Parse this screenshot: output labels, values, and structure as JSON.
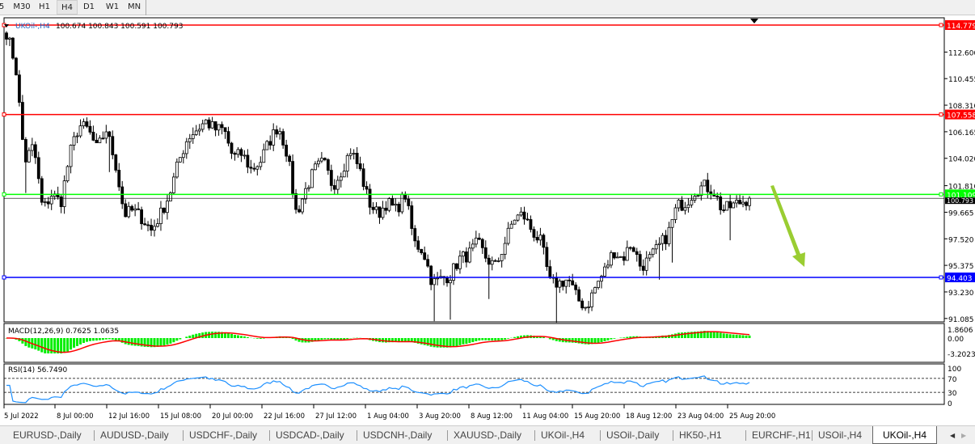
{
  "toolbar": {
    "timeframes": [
      {
        "label": "5",
        "active": false
      },
      {
        "label": "M30",
        "active": false
      },
      {
        "label": "H1",
        "active": false
      },
      {
        "label": "H4",
        "active": true
      },
      {
        "label": "D1",
        "active": false
      },
      {
        "label": "W1",
        "active": false
      },
      {
        "label": "MN",
        "active": false
      }
    ]
  },
  "chart_header": {
    "symbol": "UKOil-,H4",
    "ohlc": "100.674 100.843 100.591 100.793"
  },
  "colors": {
    "bull": "#000000",
    "resistance": "#ff0000",
    "support": "#0000ff",
    "mid": "#00ff00",
    "macd_hist": "#00ee00",
    "macd_signal": "#ff0000",
    "rsi": "#1e90ff",
    "arrow": "#9acd32"
  },
  "chart_data": {
    "type": "candlestick",
    "symbol": "UKOil-",
    "timeframe": "H4",
    "price_axis": {
      "ticks": [
        "112.600",
        "110.455",
        "108.310",
        "106.165",
        "104.020",
        "101.810",
        "99.665",
        "97.520",
        "95.375",
        "93.230",
        "91.085"
      ],
      "ylim": [
        91.085,
        114.779
      ]
    },
    "close_path": [
      114.19,
      111.58,
      103.74,
      105.05,
      99.82,
      101.13,
      100.47,
      104.39,
      106.68,
      106.35,
      104.72,
      106.35,
      103.74,
      99.49,
      99.82,
      99.16,
      98.18,
      99.49,
      101.13,
      103.74,
      105.7,
      106.35,
      107.0,
      106.35,
      106.35,
      104.07,
      104.39,
      103.09,
      103.74,
      105.37,
      106.68,
      104.39,
      99.49,
      101.45,
      103.09,
      103.74,
      101.78,
      103.09,
      104.72,
      103.09,
      100.47,
      99.49,
      100.47,
      99.82,
      101.13,
      97.21,
      96.56,
      93.94,
      94.27,
      94.6,
      95.9,
      96.23,
      97.21,
      95.9,
      95.25,
      97.21,
      99.16,
      99.49,
      98.18,
      97.21,
      93.94,
      93.94,
      94.27,
      92.64,
      91.98,
      93.62,
      94.92,
      96.56,
      95.9,
      97.21,
      95.25,
      95.9,
      96.88,
      97.86,
      100.15,
      100.47,
      101.45,
      101.78,
      101.45,
      99.82,
      100.15,
      100.47,
      100.793
    ],
    "horizontal_lines": [
      {
        "price": 114.779,
        "label": "114.779",
        "color": "#ff0000"
      },
      {
        "price": 107.558,
        "label": "107.558",
        "color": "#ff0000"
      },
      {
        "price": 101.109,
        "label": "101.109",
        "color": "#00ff00"
      },
      {
        "price": 94.403,
        "label": "94.403",
        "color": "#0000ff"
      }
    ],
    "current_price": {
      "price": 100.793,
      "label": "100.793"
    },
    "annotation": "green down arrow",
    "macd": {
      "label": "MACD(12,26,9) 0.7625 1.0635",
      "params": [
        12,
        26,
        9
      ],
      "main": 0.7625,
      "signal": 1.0635,
      "ticks": [
        "1.8606",
        "0.00",
        "-3.2023"
      ],
      "ylim": [
        -3.2023,
        1.8606
      ]
    },
    "rsi": {
      "label": "RSI(14) 56.7490",
      "period": 14,
      "value": 56.749,
      "ticks": [
        "100",
        "70",
        "30",
        "0"
      ],
      "levels": [
        70,
        30
      ]
    },
    "time_axis": [
      "5 Jul 2022",
      "8 Jul 00:00",
      "12 Jul 16:00",
      "15 Jul 08:00",
      "20 Jul 00:00",
      "22 Jul 16:00",
      "27 Jul 12:00",
      "1 Aug 04:00",
      "3 Aug 20:00",
      "8 Aug 12:00",
      "11 Aug 04:00",
      "15 Aug 20:00",
      "18 Aug 12:00",
      "23 Aug 04:00",
      "25 Aug 20:00"
    ]
  },
  "tabs": [
    {
      "label": "EURUSD-,Daily"
    },
    {
      "label": "AUDUSD-,Daily"
    },
    {
      "label": "USDCHF-,Daily"
    },
    {
      "label": "USDCAD-,Daily"
    },
    {
      "label": "USDCNH-,Daily"
    },
    {
      "label": "XAUUSD-,Daily"
    },
    {
      "label": "UKOil-,H4"
    },
    {
      "label": "USOil-,Daily"
    },
    {
      "label": "HK50-,H1"
    },
    {
      "label": "EURCHF-,H1"
    },
    {
      "label": "USOil-,H4"
    },
    {
      "label": "UKOil-,H4",
      "active": true
    }
  ],
  "tab_scroll": {
    "left": "◀",
    "right": "▶"
  }
}
